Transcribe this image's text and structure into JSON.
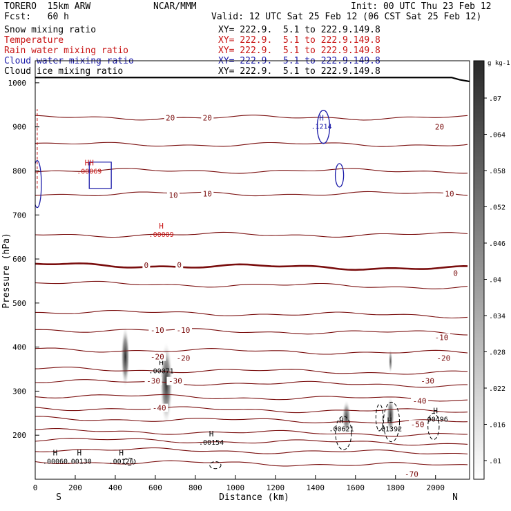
{
  "header": {
    "model": "TORERO  15km ARW",
    "org": "NCAR/MMM",
    "init": "Init: 00 UTC Thu 23 Feb 12",
    "fcst": "Fcst:   60 h",
    "valid": "Valid: 12 UTC Sat 25 Feb 12 (06 CST Sat 25 Feb 12)"
  },
  "fields": [
    {
      "label": "Snow mixing ratio",
      "xy": "XY= 222.9.  5.1 to 222.9.149.8",
      "color": "#000000"
    },
    {
      "label": "Temperature",
      "xy": "XY= 222.9.  5.1 to 222.9.149.8",
      "color": "#c81414"
    },
    {
      "label": "Rain water mixing ratio",
      "xy": "XY= 222.9.  5.1 to 222.9.149.8",
      "color": "#c81414"
    },
    {
      "label": "Cloud water mixing ratio",
      "xy": "XY= 222.9.  5.1 to 222.9.149.8",
      "color": "#1a1aa8"
    },
    {
      "label": "Cloud ice mixing ratio",
      "xy": "XY= 222.9.  5.1 to 222.9.149.8",
      "color": "#000000"
    }
  ],
  "chart_data": {
    "type": "cross-section",
    "xlabel": "Distance (km)",
    "ylabel": "Pressure (hPa)",
    "xlim": [
      0,
      2170
    ],
    "ylim": [
      1050,
      100
    ],
    "x_ticks": [
      0,
      200,
      400,
      600,
      800,
      1000,
      1200,
      1400,
      1600,
      1800,
      2000
    ],
    "y_ticks": [
      200,
      300,
      400,
      500,
      600,
      700,
      800,
      900,
      1000
    ],
    "endpoints": {
      "left": "S",
      "right": "N"
    },
    "colorbar": {
      "unit": "g kg-1",
      "ticks": [
        ".01",
        ".016",
        ".022",
        ".028",
        ".034",
        ".04",
        ".046",
        ".052",
        ".058",
        ".064",
        ".07"
      ]
    },
    "isotherm_labels": [
      {
        "text": "-70",
        "x": 1880,
        "p": 112
      },
      {
        "text": "-50",
        "x": 1910,
        "p": 225
      },
      {
        "text": "-40",
        "x": 620,
        "p": 262
      },
      {
        "text": "-40",
        "x": 1920,
        "p": 278
      },
      {
        "text": "-30",
        "x": 590,
        "p": 323
      },
      {
        "text": "-30",
        "x": 700,
        "p": 323
      },
      {
        "text": "-30",
        "x": 1960,
        "p": 323
      },
      {
        "text": "-20",
        "x": 610,
        "p": 378
      },
      {
        "text": "-20",
        "x": 740,
        "p": 375
      },
      {
        "text": "-20",
        "x": 2040,
        "p": 375
      },
      {
        "text": "-10",
        "x": 610,
        "p": 439
      },
      {
        "text": "-10",
        "x": 740,
        "p": 439
      },
      {
        "text": "-10",
        "x": 2030,
        "p": 422
      },
      {
        "text": "0",
        "x": 555,
        "p": 586
      },
      {
        "text": "0",
        "x": 720,
        "p": 587
      },
      {
        "text": "0",
        "x": 2100,
        "p": 568
      },
      {
        "text": "10",
        "x": 690,
        "p": 745
      },
      {
        "text": "10",
        "x": 860,
        "p": 748
      },
      {
        "text": "10",
        "x": 2070,
        "p": 748
      },
      {
        "text": "20",
        "x": 675,
        "p": 921
      },
      {
        "text": "20",
        "x": 860,
        "p": 921
      },
      {
        "text": "20",
        "x": 2020,
        "p": 900
      }
    ],
    "maxima": [
      {
        "mark": "H",
        "value": ".00060",
        "x": 100,
        "p": 145,
        "color": "#000000"
      },
      {
        "mark": "H",
        "value": ".00130",
        "x": 220,
        "p": 145,
        "color": "#000000"
      },
      {
        "mark": "H",
        "value": ".00126",
        "x": 430,
        "p": 145,
        "color": "#000000"
      },
      {
        "mark": "H",
        "value": ".00154",
        "x": 880,
        "p": 188,
        "color": "#000000"
      },
      {
        "mark": "H",
        "value": ".00071",
        "x": 630,
        "p": 350,
        "color": "#000000"
      },
      {
        "mark": "H",
        "value": ".00621",
        "x": 1530,
        "p": 218,
        "color": "#000000"
      },
      {
        "mark": "H",
        "value": ".01392",
        "x": 1770,
        "p": 218,
        "color": "#000000"
      },
      {
        "mark": "H",
        "value": ".00496",
        "x": 2000,
        "p": 240,
        "color": "#000000"
      },
      {
        "mark": "H",
        "value": ".00009",
        "x": 630,
        "p": 660,
        "color": "#c81414"
      },
      {
        "mark": "HH",
        "value": ".00069",
        "x": 270,
        "p": 803,
        "color": "#c81414"
      },
      {
        "mark": "H",
        "value": ".1214",
        "x": 1430,
        "p": 905,
        "color": "#1a1aa8"
      }
    ],
    "shaded_plumes": [
      {
        "x": 450,
        "p": 378,
        "sx": 22,
        "sp": 70,
        "value": 0.07
      },
      {
        "x": 655,
        "p": 318,
        "sx": 32,
        "sp": 95,
        "value": 0.07
      },
      {
        "x": 1555,
        "p": 240,
        "sx": 22,
        "sp": 40,
        "value": 0.05
      },
      {
        "x": 1775,
        "p": 245,
        "sx": 20,
        "sp": 42,
        "value": 0.06
      },
      {
        "x": 1775,
        "p": 368,
        "sx": 10,
        "sp": 28,
        "value": 0.03
      }
    ]
  }
}
